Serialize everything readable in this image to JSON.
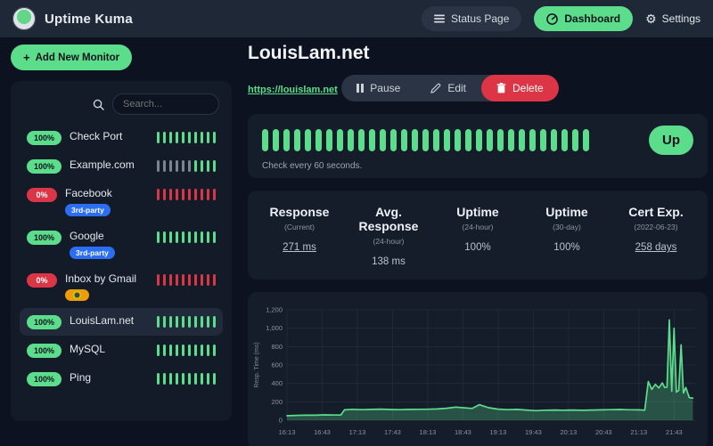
{
  "colors": {
    "green": "#5cdd8b",
    "red": "#dc3545",
    "blue": "#2c6ef2",
    "orange": "#ef9c0c",
    "card_bg": "#151d2b",
    "page_bg": "#0c1220",
    "grid": "#232c3c"
  },
  "icons": {
    "plus": "+",
    "gear": "⚙"
  },
  "topbar": {
    "app_name": "Uptime Kuma",
    "status_page_label": "Status Page",
    "dashboard_label": "Dashboard",
    "settings_label": "Settings"
  },
  "sidebar": {
    "add_monitor_label": "Add New Monitor",
    "search_placeholder": "Search...",
    "monitors": [
      {
        "name": "Check Port",
        "uptime": "100%",
        "status": "up",
        "selected": false,
        "badges": [],
        "beats": [
          "u",
          "u",
          "u",
          "u",
          "u",
          "u",
          "u",
          "u",
          "u",
          "u"
        ]
      },
      {
        "name": "Example.com",
        "uptime": "100%",
        "status": "up",
        "selected": false,
        "badges": [],
        "beats": [
          "e",
          "e",
          "e",
          "e",
          "e",
          "e",
          "u",
          "u",
          "u",
          "u"
        ]
      },
      {
        "name": "Facebook",
        "uptime": "0%",
        "status": "down",
        "selected": false,
        "badges": [
          {
            "label": "3rd-party",
            "color": "blue"
          }
        ],
        "beats": [
          "d",
          "d",
          "d",
          "d",
          "d",
          "d",
          "d",
          "d",
          "d",
          "d"
        ]
      },
      {
        "name": "Google",
        "uptime": "100%",
        "status": "up",
        "selected": false,
        "badges": [
          {
            "label": "3rd-party",
            "color": "blue"
          }
        ],
        "beats": [
          "u",
          "u",
          "u",
          "u",
          "u",
          "u",
          "u",
          "u",
          "u",
          "u"
        ]
      },
      {
        "name": "Inbox by Gmail",
        "uptime": "0%",
        "status": "down",
        "selected": false,
        "badges": [
          {
            "label": "",
            "color": "orange",
            "icon": "oauth-icon"
          }
        ],
        "beats": [
          "d",
          "d",
          "d",
          "d",
          "d",
          "d",
          "d",
          "d",
          "d",
          "d"
        ]
      },
      {
        "name": "LouisLam.net",
        "uptime": "100%",
        "status": "up",
        "selected": true,
        "badges": [],
        "beats": [
          "u",
          "u",
          "u",
          "u",
          "u",
          "u",
          "u",
          "u",
          "u",
          "u"
        ]
      },
      {
        "name": "MySQL",
        "uptime": "100%",
        "status": "up",
        "selected": false,
        "badges": [],
        "beats": [
          "u",
          "u",
          "u",
          "u",
          "u",
          "u",
          "u",
          "u",
          "u",
          "u"
        ]
      },
      {
        "name": "Ping",
        "uptime": "100%",
        "status": "up",
        "selected": false,
        "badges": [],
        "beats": [
          "u",
          "u",
          "u",
          "u",
          "u",
          "u",
          "u",
          "u",
          "u",
          "u"
        ]
      }
    ]
  },
  "main": {
    "title": "LouisLam.net",
    "url": "https://louislam.net",
    "actions": {
      "pause": "Pause",
      "edit": "Edit",
      "delete": "Delete"
    },
    "banner": {
      "beat_count": 31,
      "status_label": "Up",
      "check_text": "Check every 60 seconds."
    },
    "stats": [
      {
        "label": "Response",
        "sub": "(Current)",
        "value": "271 ms",
        "underline": true
      },
      {
        "label": "Avg. Response",
        "sub": "(24-hour)",
        "value": "138 ms",
        "underline": false
      },
      {
        "label": "Uptime",
        "sub": "(24-hour)",
        "value": "100%",
        "underline": false
      },
      {
        "label": "Uptime",
        "sub": "(30-day)",
        "value": "100%",
        "underline": false
      },
      {
        "label": "Cert Exp.",
        "sub": "(2022-06-23)",
        "value": "258 days",
        "underline": true
      }
    ]
  },
  "chart_data": {
    "type": "area",
    "title": "",
    "xlabel": "",
    "ylabel": "Resp. Time (ms)",
    "ylim": [
      0,
      1200
    ],
    "grid": true,
    "legend": "none",
    "ytick_values": [
      0,
      200,
      400,
      600,
      800,
      1000,
      1200
    ],
    "ytick_labels": [
      "0",
      "200",
      "400",
      "600",
      "800",
      "1,000",
      "1,200"
    ],
    "xticks": [
      {
        "t": 0,
        "label": "16:13"
      },
      {
        "t": 30,
        "label": "16:43"
      },
      {
        "t": 60,
        "label": "17:13"
      },
      {
        "t": 90,
        "label": "17:43"
      },
      {
        "t": 120,
        "label": "18:13"
      },
      {
        "t": 150,
        "label": "18:43"
      },
      {
        "t": 180,
        "label": "19:13"
      },
      {
        "t": 210,
        "label": "19:43"
      },
      {
        "t": 240,
        "label": "20:13"
      },
      {
        "t": 270,
        "label": "20:43"
      },
      {
        "t": 300,
        "label": "21:13"
      },
      {
        "t": 330,
        "label": "21:43"
      }
    ],
    "series_name": "Response time (ms)",
    "points": [
      [
        0,
        48
      ],
      [
        8,
        52
      ],
      [
        16,
        55
      ],
      [
        24,
        54
      ],
      [
        32,
        58
      ],
      [
        40,
        56
      ],
      [
        46,
        57
      ],
      [
        49,
        112
      ],
      [
        56,
        118
      ],
      [
        64,
        114
      ],
      [
        72,
        117
      ],
      [
        80,
        120
      ],
      [
        88,
        116
      ],
      [
        96,
        114
      ],
      [
        104,
        117
      ],
      [
        112,
        118
      ],
      [
        120,
        119
      ],
      [
        128,
        122
      ],
      [
        136,
        130
      ],
      [
        144,
        142
      ],
      [
        150,
        135
      ],
      [
        158,
        128
      ],
      [
        164,
        168
      ],
      [
        168,
        152
      ],
      [
        172,
        135
      ],
      [
        180,
        120
      ],
      [
        188,
        114
      ],
      [
        196,
        117
      ],
      [
        204,
        110
      ],
      [
        212,
        104
      ],
      [
        220,
        108
      ],
      [
        228,
        110
      ],
      [
        236,
        108
      ],
      [
        244,
        110
      ],
      [
        252,
        107
      ],
      [
        260,
        110
      ],
      [
        268,
        112
      ],
      [
        276,
        114
      ],
      [
        284,
        116
      ],
      [
        292,
        113
      ],
      [
        300,
        112
      ],
      [
        305,
        108
      ],
      [
        308,
        420
      ],
      [
        311,
        335
      ],
      [
        314,
        390
      ],
      [
        317,
        350
      ],
      [
        320,
        405
      ],
      [
        322,
        355
      ],
      [
        324,
        360
      ],
      [
        326,
        1090
      ],
      [
        328,
        315
      ],
      [
        330,
        1000
      ],
      [
        332,
        305
      ],
      [
        334,
        325
      ],
      [
        336,
        820
      ],
      [
        338,
        295
      ],
      [
        340,
        355
      ],
      [
        343,
        245
      ],
      [
        346,
        240
      ]
    ]
  }
}
